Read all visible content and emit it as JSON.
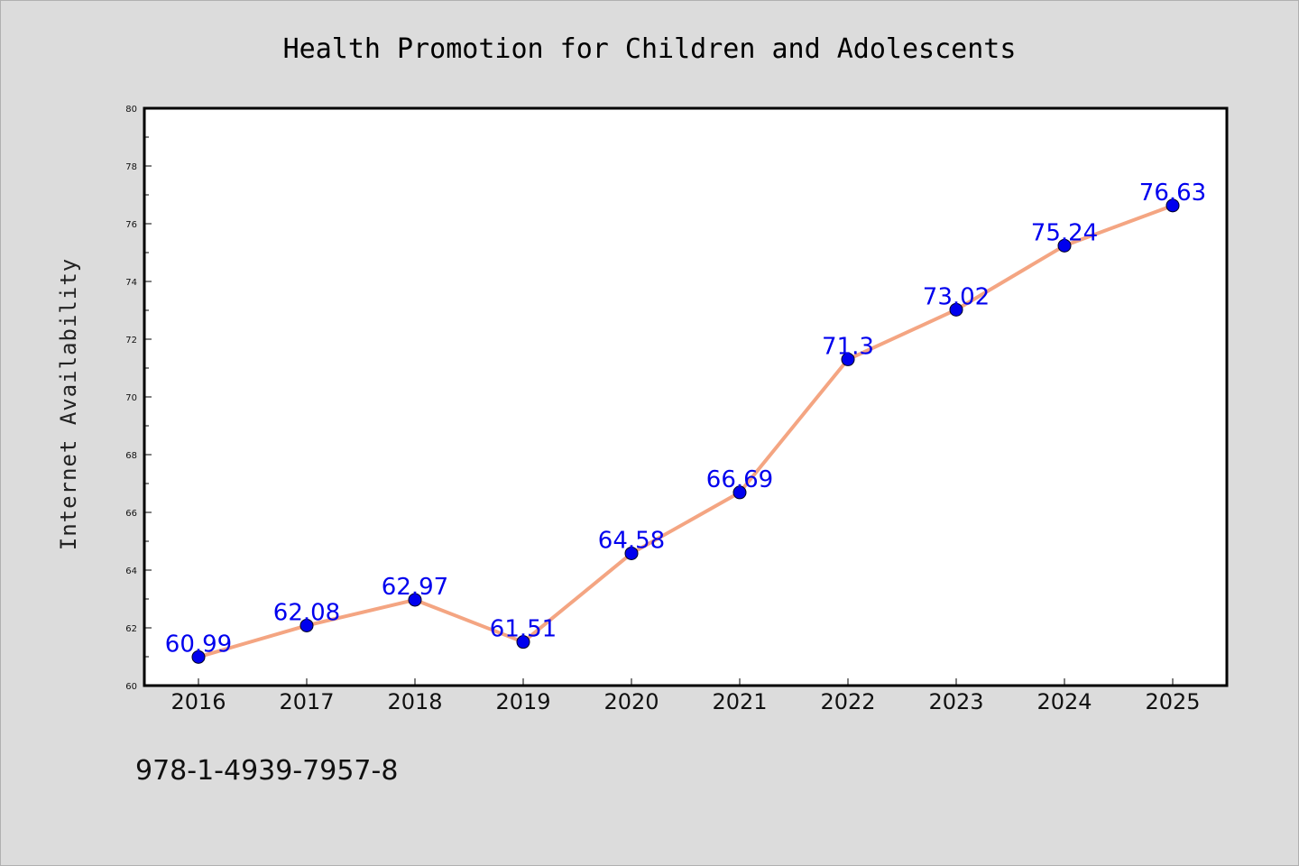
{
  "chart_data": {
    "type": "line",
    "title": "Health Promotion for Children and Adolescents",
    "xlabel": "",
    "ylabel": "Internet Availability",
    "categories": [
      "2016",
      "2017",
      "2018",
      "2019",
      "2020",
      "2021",
      "2022",
      "2023",
      "2024",
      "2025"
    ],
    "series": [
      {
        "values": [
          60.99,
          62.08,
          62.97,
          61.51,
          64.58,
          66.69,
          71.3,
          73.02,
          75.24,
          76.63
        ],
        "labels": [
          "60.99",
          "62.08",
          "62.97",
          "61.51",
          "64.58",
          "66.69",
          "71.3",
          "73.02",
          "75.24",
          "76.63"
        ]
      }
    ],
    "ylim": [
      60,
      80
    ],
    "yticks": [
      "60",
      "62",
      "64",
      "66",
      "68",
      "70",
      "72",
      "74",
      "76",
      "78",
      "80"
    ],
    "grid": false,
    "legend": "none",
    "colors": {
      "line": "#f4a582",
      "marker": "#0000ee",
      "label": "#0000ee"
    }
  },
  "footer": {
    "code": "978-1-4939-7957-8"
  }
}
